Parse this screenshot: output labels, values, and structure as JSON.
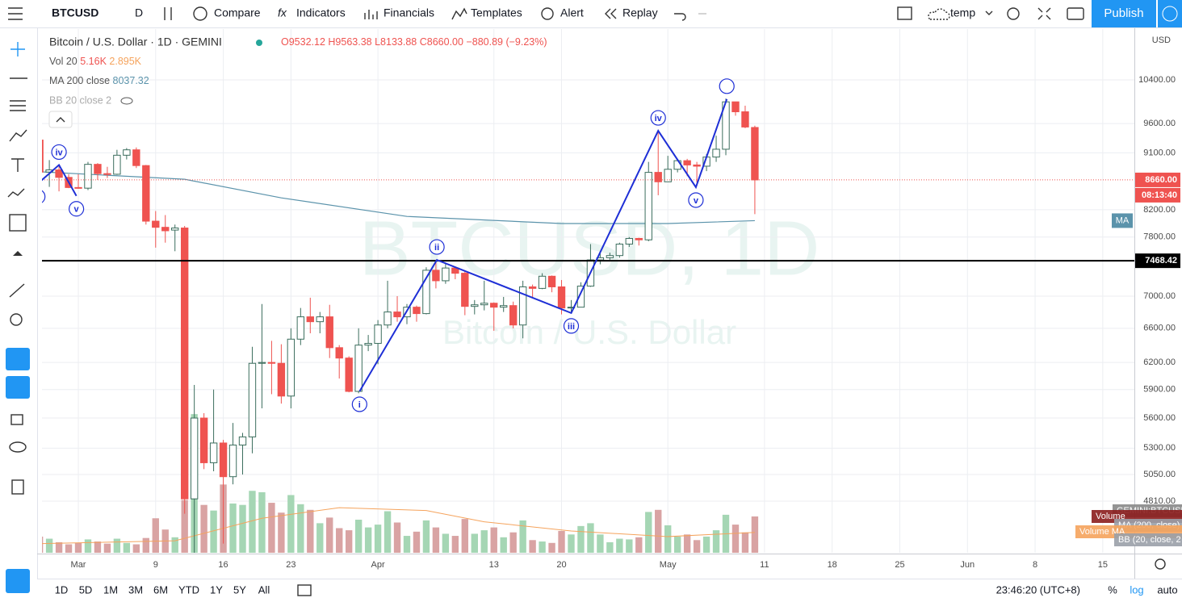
{
  "toolbar": {
    "symbol": "BTCUSD",
    "interval": "D",
    "buttons": [
      "Compare",
      "Indicators",
      "Financials",
      "Templates",
      "Alert",
      "Replay"
    ],
    "layout": "temp",
    "publish": "Publish"
  },
  "legend": {
    "title": "Bitcoin / U.S. Dollar · 1D · GEMINI",
    "ohlc": [
      "O9532.12",
      "H9563.38",
      "L8133.88",
      "C8660.00",
      "−880.89 (−9.23%)"
    ],
    "indicators": [
      {
        "name": "Vol 20",
        "values": [
          "5.16K",
          "2.895K"
        ]
      },
      {
        "name": "MA 200 close",
        "values": [
          "8037.32"
        ]
      },
      {
        "name": "BB 20 close 2"
      }
    ]
  },
  "watermark": [
    "BTCUSD, 1D",
    "Bitcoin / U.S. Dollar"
  ],
  "chart_data": {
    "type": "candlestick",
    "log_scale": true,
    "grid": true,
    "currency": "USD",
    "xlim": [
      -2.76,
      110.27
    ],
    "ylim": [
      4376,
      11414
    ],
    "xticks": [
      {
        "value": 1,
        "label": "Mar"
      },
      9,
      16,
      23,
      {
        "value": 32,
        "label": "Apr"
      },
      {
        "value": 44,
        "label": "13"
      },
      {
        "value": 51,
        "label": "20"
      },
      {
        "value": 62,
        "label": "May"
      },
      {
        "value": 72,
        "label": "11"
      },
      {
        "value": 79,
        "label": "18"
      },
      {
        "value": 86,
        "label": "25"
      },
      {
        "value": 93,
        "label": "Jun"
      },
      {
        "value": 100,
        "label": "8"
      },
      {
        "value": 107,
        "label": "15"
      }
    ],
    "yticks": [
      {
        "value": 10400,
        "label": "10400.00"
      },
      {
        "value": 9600,
        "label": "9600.00"
      },
      {
        "value": 9100,
        "label": "9100.00"
      },
      {
        "value": 8200,
        "label": "8200.00"
      },
      {
        "value": 7800,
        "label": "7800.00"
      },
      {
        "value": 7000,
        "label": "7000.00"
      },
      {
        "value": 6600,
        "label": "6600.00"
      },
      {
        "value": 6200,
        "label": "6200.00"
      },
      {
        "value": 5900,
        "label": "5900.00"
      },
      {
        "value": 5600,
        "label": "5600.00"
      },
      {
        "value": 5300,
        "label": "5300.00"
      },
      {
        "value": 5050,
        "label": "5050.00"
      },
      {
        "value": 4810,
        "label": "4810.00"
      }
    ],
    "colors": {
      "up": "#26a69a",
      "down": "#ef5350",
      "volume_up": "#a5d6b4",
      "volume_down": "#d9a3a3"
    },
    "x": [
      -3,
      -2,
      -1,
      0,
      1,
      2,
      3,
      4,
      5,
      6,
      7,
      8,
      9,
      10,
      11,
      12,
      13,
      14,
      15,
      16,
      17,
      18,
      19,
      20,
      21,
      22,
      23,
      24,
      25,
      26,
      27,
      28,
      29,
      30,
      31,
      32,
      33,
      34,
      35,
      36,
      37,
      38,
      39,
      40,
      41,
      42,
      43,
      44,
      45,
      46,
      47,
      48,
      49,
      50,
      51,
      52,
      53,
      54,
      55,
      56,
      57,
      58,
      59,
      60,
      61,
      62,
      63,
      64,
      65,
      66,
      67,
      68,
      69,
      70,
      71
    ],
    "open": [
      9315,
      8785,
      8820,
      8700,
      8540,
      8530,
      8910,
      8760,
      8750,
      9060,
      9150,
      8890,
      8030,
      7940,
      7900,
      7930,
      4830,
      5600,
      5160,
      5350,
      5030,
      5330,
      5410,
      6190,
      6200,
      6190,
      5830,
      6470,
      6740,
      6680,
      6740,
      6370,
      6250,
      5880,
      6400,
      6420,
      6640,
      6800,
      6740,
      6860,
      6780,
      7340,
      7200,
      7370,
      7300,
      6870,
      6890,
      6910,
      6860,
      6880,
      6640,
      7120,
      7100,
      7260,
      7120,
      6850,
      6860,
      7130,
      7480,
      7510,
      7540,
      7700,
      7780,
      7760,
      8780,
      8630,
      8830,
      8970,
      8900,
      8880,
      9030,
      9160,
      9990,
      9810,
      9532.12
    ],
    "high": [
      9370,
      8980,
      8900,
      8750,
      8750,
      8950,
      8930,
      8870,
      9150,
      9180,
      9190,
      8900,
      8180,
      8120,
      7980,
      7960,
      5950,
      5650,
      5900,
      5380,
      5550,
      5450,
      6380,
      6900,
      6450,
      6410,
      6600,
      6850,
      6980,
      6800,
      6890,
      6400,
      6270,
      6600,
      6520,
      6700,
      7200,
      7000,
      6900,
      6880,
      7380,
      7460,
      7430,
      7390,
      7330,
      6950,
      7200,
      6920,
      6990,
      6930,
      7200,
      7150,
      7300,
      7270,
      7210,
      6950,
      7180,
      7700,
      7600,
      7580,
      7720,
      7800,
      7790,
      8950,
      9470,
      9050,
      9000,
      9000,
      8950,
      9080,
      9390,
      10050,
      9990,
      9920,
      9563.38
    ],
    "low": [
      8650,
      8550,
      8480,
      8530,
      8520,
      8500,
      8660,
      8690,
      8740,
      8990,
      8850,
      7980,
      7650,
      7720,
      7600,
      4700,
      3850,
      5100,
      5080,
      4450,
      4960,
      5050,
      5250,
      5700,
      5850,
      5750,
      5700,
      6400,
      6540,
      6540,
      6250,
      6020,
      5870,
      5860,
      6330,
      6180,
      6600,
      6680,
      6650,
      6680,
      6770,
      7100,
      7160,
      7220,
      6760,
      6770,
      6820,
      6570,
      6800,
      6600,
      6480,
      6990,
      7090,
      7050,
      6770,
      6800,
      6860,
      7120,
      7420,
      7480,
      7510,
      7660,
      7680,
      7740,
      8420,
      8630,
      8780,
      8720,
      8620,
      8800,
      8950,
      9060,
      9740,
      9520,
      8133.88
    ],
    "close": [
      8785,
      8820,
      8700,
      8540,
      8530,
      8910,
      8760,
      8750,
      9060,
      9150,
      8890,
      8030,
      7940,
      7890,
      7930,
      4830,
      5600,
      5160,
      5350,
      5030,
      5330,
      5410,
      6190,
      6200,
      6190,
      5830,
      6470,
      6740,
      6680,
      6740,
      6370,
      6250,
      5880,
      6400,
      6420,
      6640,
      6800,
      6740,
      6860,
      6780,
      7340,
      7200,
      7370,
      7300,
      6870,
      6890,
      6910,
      6860,
      6880,
      6640,
      7120,
      7100,
      7260,
      7120,
      6850,
      6860,
      7130,
      7480,
      7510,
      7540,
      7700,
      7780,
      7760,
      8780,
      8630,
      8830,
      8970,
      8900,
      8880,
      9030,
      9160,
      9990,
      9810,
      9540,
      8660
    ],
    "volume": {
      "ylim": [
        0,
        74.4
      ],
      "values": [
        2.3,
        2.0,
        1.5,
        1.2,
        1.4,
        1.9,
        1.6,
        1.3,
        2.0,
        1.4,
        1.2,
        2.1,
        4.9,
        3.3,
        2.2,
        7.5,
        19.7,
        6.8,
        6.0,
        9.7,
        7.0,
        6.8,
        8.8,
        8.6,
        7.1,
        5.7,
        8.2,
        6.9,
        6.1,
        4.2,
        5.0,
        3.5,
        3.2,
        4.7,
        3.6,
        4.0,
        5.9,
        4.3,
        2.4,
        3.0,
        4.6,
        3.6,
        2.7,
        2.4,
        4.8,
        2.7,
        3.2,
        3.6,
        2.2,
        2.9,
        4.6,
        1.8,
        1.6,
        1.4,
        3.1,
        2.6,
        3.8,
        4.2,
        2.6,
        1.5,
        2.0,
        1.9,
        2.2,
        5.8,
        6.1,
        3.9,
        2.3,
        2.6,
        1.8,
        2.3,
        3.2,
        5.4,
        4.0,
        2.9,
        5.16
      ]
    },
    "volume_ma": {
      "color": "#f5a35c",
      "x": [
        -3,
        11,
        20,
        28,
        37,
        43,
        52,
        62,
        71
      ],
      "values": [
        1.3,
        1.7,
        4.9,
        6.4,
        6.0,
        4.4,
        3.1,
        2.3,
        2.895
      ]
    },
    "ma200": {
      "name": "MA",
      "color": "#5b93ab",
      "x": [
        -3,
        12,
        22,
        35,
        51,
        62,
        71
      ],
      "values": [
        8790,
        8670,
        8380,
        8100,
        7995,
        7995,
        8037.32
      ]
    },
    "waves": [
      {
        "color": "#1e2fd6",
        "x": [
          -3.2,
          -1,
          0.8
        ],
        "values": [
          8600,
          8900,
          8410
        ],
        "labels": [
          "i",
          "iv",
          "v"
        ]
      },
      {
        "color": "#1e2fd6",
        "x": [
          30.1,
          38.1,
          52,
          61,
          64.9,
          68.1
        ],
        "values": [
          5880,
          7480,
          6787,
          9475,
          8545,
          10040
        ],
        "labels": [
          "i",
          "ii",
          "iii",
          "iv",
          "v"
        ]
      }
    ],
    "hline": {
      "value": 7468.42,
      "label": "7468.42"
    },
    "last": {
      "value": 8660,
      "label": "8660.00",
      "countdown": "08:13:40"
    },
    "pane_legend": [
      "GEMINI:BTCUSD",
      "Volume",
      "MA (200, close)",
      "Volume MA",
      "BB (20, close, 2"
    ]
  },
  "bottom_bar": {
    "ranges": [
      "1D",
      "5D",
      "1M",
      "3M",
      "6M",
      "YTD",
      "1Y",
      "5Y",
      "All"
    ],
    "clock": "23:46:20 (UTC+8)",
    "options": [
      "%",
      "log",
      "auto"
    ]
  }
}
